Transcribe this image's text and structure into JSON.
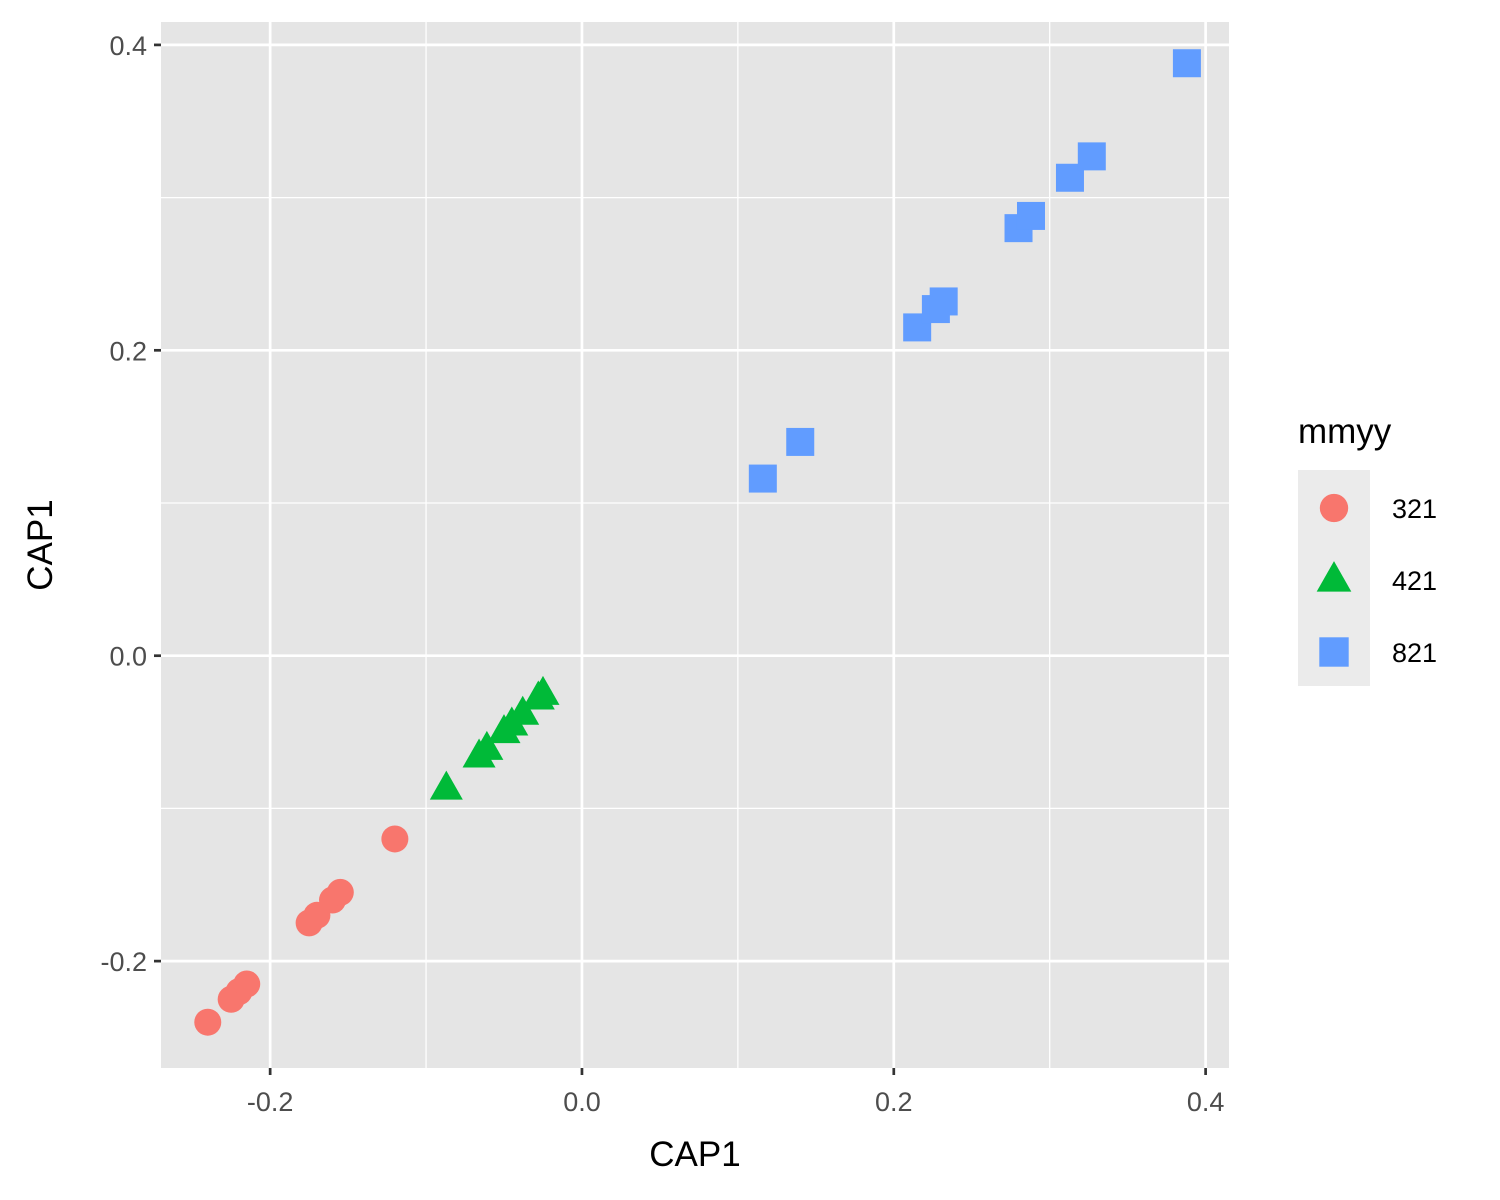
{
  "chart_data": {
    "type": "scatter",
    "xlabel": "CAP1",
    "ylabel": "CAP1",
    "xlim": [
      -0.27,
      0.415
    ],
    "ylim": [
      -0.27,
      0.415
    ],
    "x_ticks": [
      -0.2,
      0.0,
      0.2,
      0.4
    ],
    "x_tick_labels": [
      "-0.2",
      "0.0",
      "0.2",
      "0.4"
    ],
    "y_ticks": [
      -0.2,
      0.0,
      0.2,
      0.4
    ],
    "y_tick_labels": [
      "-0.2",
      "0.0",
      "0.2",
      "0.4"
    ],
    "grid": true,
    "legend": {
      "title": "mmyy",
      "placement": "right",
      "entries": [
        "321",
        "421",
        "821"
      ]
    },
    "series": [
      {
        "name": "321",
        "shape": "circle",
        "color": "#F8766D",
        "points": [
          [
            -0.24,
            -0.24
          ],
          [
            -0.225,
            -0.225
          ],
          [
            -0.22,
            -0.22
          ],
          [
            -0.215,
            -0.215
          ],
          [
            -0.175,
            -0.175
          ],
          [
            -0.17,
            -0.17
          ],
          [
            -0.16,
            -0.16
          ],
          [
            -0.155,
            -0.155
          ],
          [
            -0.12,
            -0.12
          ]
        ]
      },
      {
        "name": "421",
        "shape": "triangle",
        "color": "#00BA38",
        "points": [
          [
            -0.087,
            -0.087
          ],
          [
            -0.066,
            -0.066
          ],
          [
            -0.061,
            -0.061
          ],
          [
            -0.05,
            -0.05
          ],
          [
            -0.045,
            -0.045
          ],
          [
            -0.038,
            -0.038
          ],
          [
            -0.028,
            -0.028
          ],
          [
            -0.025,
            -0.025
          ]
        ]
      },
      {
        "name": "821",
        "shape": "square",
        "color": "#619CFF",
        "points": [
          [
            0.116,
            0.116
          ],
          [
            0.14,
            0.14
          ],
          [
            0.215,
            0.215
          ],
          [
            0.227,
            0.227
          ],
          [
            0.232,
            0.232
          ],
          [
            0.28,
            0.28
          ],
          [
            0.288,
            0.288
          ],
          [
            0.313,
            0.313
          ],
          [
            0.327,
            0.327
          ],
          [
            0.388,
            0.388
          ]
        ]
      }
    ]
  }
}
